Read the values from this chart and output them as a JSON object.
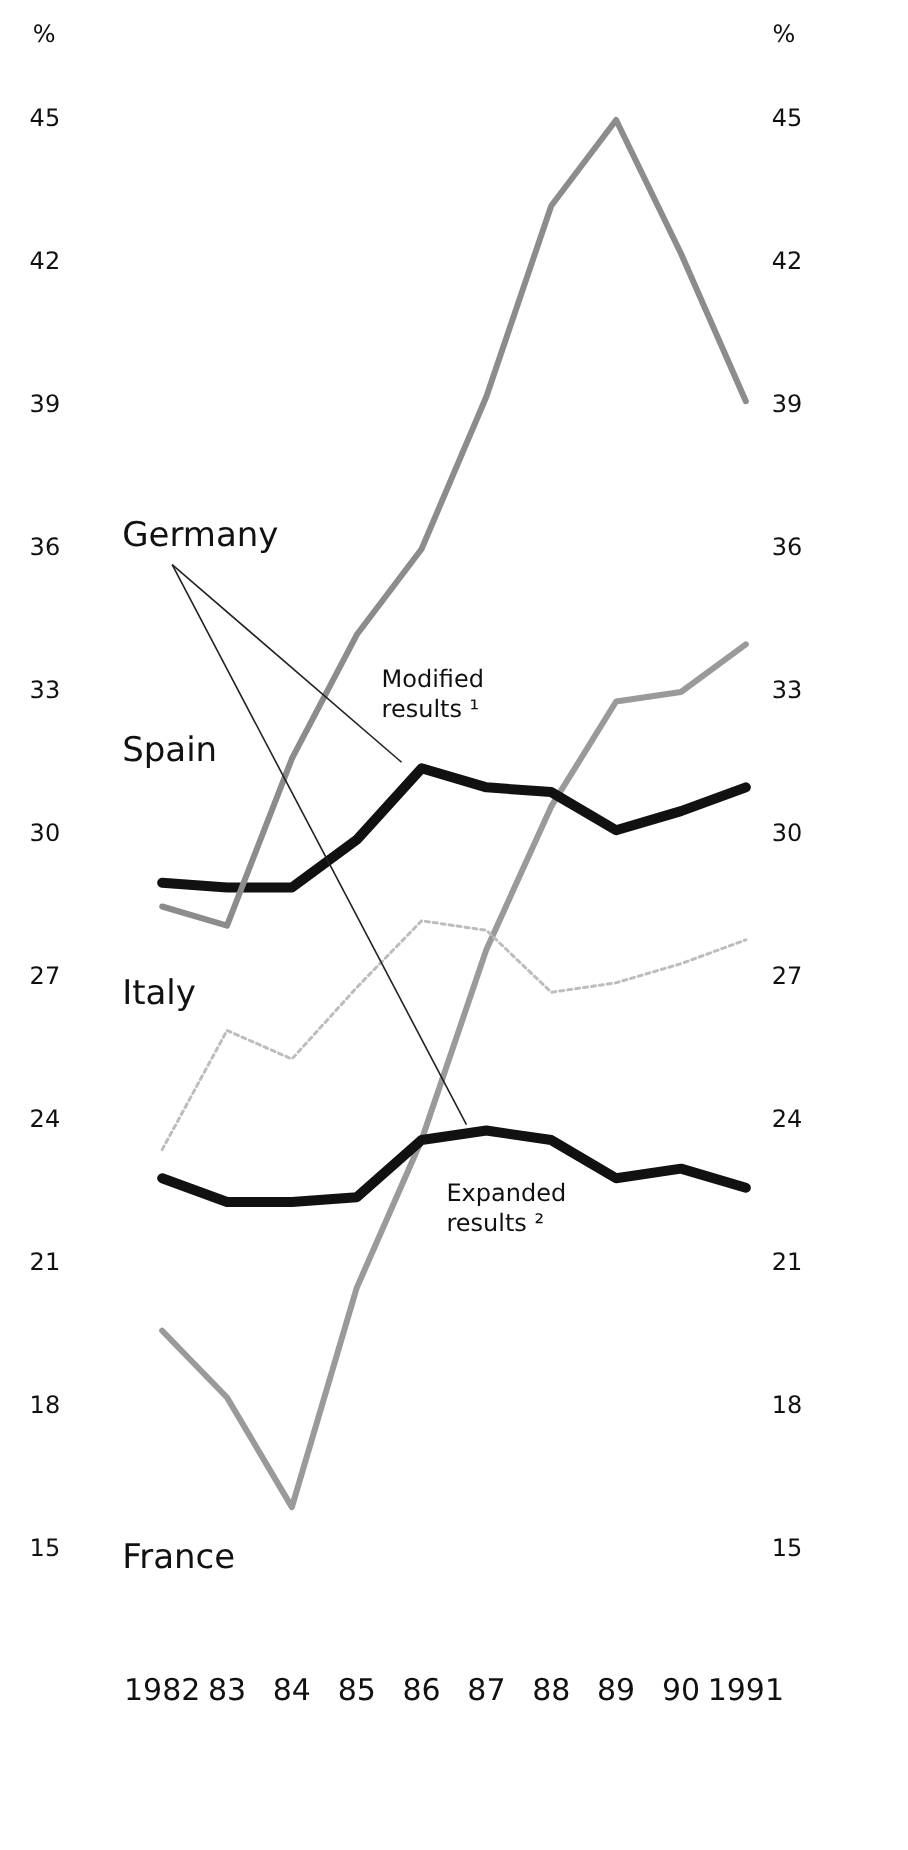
{
  "chart_data": {
    "type": "line",
    "ylabel": "%",
    "y2label": "%",
    "categories": [
      "1982",
      "83",
      "84",
      "85",
      "86",
      "87",
      "88",
      "89",
      "90",
      "1991"
    ],
    "series": [
      {
        "name": "Spain",
        "color": "#8c8c8c",
        "line_style": "solid",
        "values": [
          28.5,
          28.1,
          31.6,
          34.2,
          36.0,
          39.2,
          43.2,
          45.0,
          42.2,
          39.1
        ]
      },
      {
        "name": "Germany",
        "color": "#111111",
        "line_style": "solid",
        "values": [
          29.0,
          28.9,
          28.9,
          29.9,
          31.4,
          31.0,
          30.9,
          30.1,
          30.5,
          31.0
        ]
      },
      {
        "name": "Italy",
        "color": "#bdbdbd",
        "line_style": "dotted",
        "values": [
          23.4,
          25.9,
          25.3,
          26.8,
          28.2,
          28.0,
          26.7,
          26.9,
          27.3,
          27.8
        ]
      },
      {
        "color": "#111111",
        "line_style": "solid",
        "values": [
          22.8,
          22.3,
          22.3,
          22.4,
          23.6,
          23.8,
          23.6,
          22.8,
          23.0,
          22.6
        ]
      },
      {
        "name": "France",
        "color": "#9a9a9a",
        "line_style": "solid",
        "values": [
          19.6,
          18.2,
          15.9,
          20.5,
          23.6,
          27.6,
          30.6,
          32.8,
          33.0,
          34.0
        ]
      }
    ],
    "annotations": [
      {
        "text": "Modified results ¹",
        "x": "86",
        "y": 31.4
      },
      {
        "text": "Expanded results ²",
        "x": "87",
        "y": 23.8
      }
    ],
    "ylim": [
      15,
      45
    ],
    "yticks": [
      15,
      18,
      21,
      24,
      27,
      30,
      33,
      36,
      39,
      42,
      45
    ],
    "y2lim": [
      15,
      45
    ],
    "y2ticks": [
      15,
      18,
      21,
      24,
      27,
      30,
      33,
      36,
      39,
      42,
      45
    ],
    "grid": false,
    "legend": false,
    "marker": "none"
  }
}
